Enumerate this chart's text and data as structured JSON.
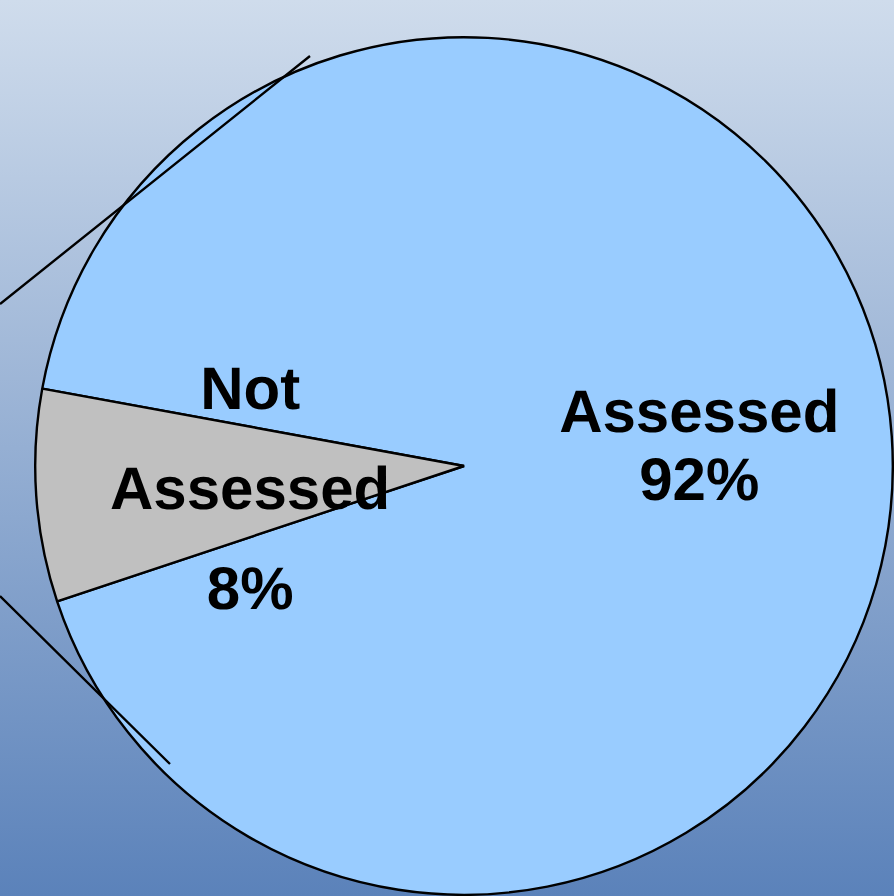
{
  "chart_data": {
    "type": "pie",
    "categories": [
      "Assessed",
      "Not Assessed"
    ],
    "values": [
      92,
      8
    ],
    "colors": [
      "#99ccff",
      "#c0c0c0"
    ],
    "value_labels": [
      "92%",
      "8%"
    ]
  }
}
